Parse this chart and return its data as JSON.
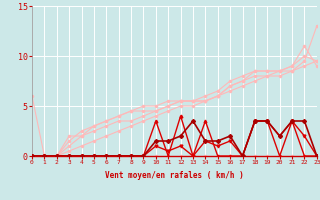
{
  "xlabel": "Vent moyen/en rafales ( km/h )",
  "xlim": [
    0,
    23
  ],
  "ylim": [
    0,
    15
  ],
  "yticks": [
    0,
    5,
    10,
    15
  ],
  "xticks": [
    0,
    1,
    2,
    3,
    4,
    5,
    6,
    7,
    8,
    9,
    10,
    11,
    12,
    13,
    14,
    15,
    16,
    17,
    18,
    19,
    20,
    21,
    22,
    23
  ],
  "bg_color": "#cce8e8",
  "grid_color": "#ffffff",
  "lines": [
    {
      "x": [
        0,
        1,
        2,
        3,
        4,
        5,
        6,
        7,
        8,
        9,
        10,
        11,
        12,
        13,
        14,
        15,
        16,
        17,
        18,
        19,
        20,
        21,
        22,
        23
      ],
      "y": [
        0,
        0,
        0,
        0,
        0,
        0,
        0,
        0,
        0,
        0,
        0,
        0,
        0,
        0,
        0,
        0,
        0,
        0,
        0,
        0,
        0,
        0,
        0,
        0
      ],
      "color": "#ffb8b8",
      "lw": 0.8,
      "marker": "o",
      "ms": 1.5,
      "zorder": 2
    },
    {
      "x": [
        0,
        1,
        2,
        3,
        4,
        5,
        6,
        7,
        8,
        9,
        10,
        11,
        12,
        13,
        14,
        15,
        16,
        17,
        18,
        19,
        20,
        21,
        22,
        23
      ],
      "y": [
        0,
        0,
        0,
        0.5,
        1,
        1.5,
        2,
        2.5,
        3,
        3.5,
        4,
        4.5,
        5,
        5.0,
        5.5,
        6,
        6.5,
        7,
        7.5,
        8,
        8,
        8.5,
        9,
        9.5
      ],
      "color": "#ffb8b8",
      "lw": 0.8,
      "marker": "o",
      "ms": 1.5,
      "zorder": 2
    },
    {
      "x": [
        0,
        1,
        2,
        3,
        4,
        5,
        6,
        7,
        8,
        9,
        10,
        11,
        12,
        13,
        14,
        15,
        16,
        17,
        18,
        19,
        20,
        21,
        22,
        23
      ],
      "y": [
        0,
        0,
        0,
        1,
        2,
        2.5,
        3,
        3.5,
        3.5,
        4,
        4.5,
        5,
        5.5,
        5.5,
        5.5,
        6,
        7,
        7.5,
        8,
        8,
        8.5,
        8.5,
        9.5,
        13
      ],
      "color": "#ffb8b8",
      "lw": 0.8,
      "marker": "o",
      "ms": 1.5,
      "zorder": 2
    },
    {
      "x": [
        0,
        1,
        2,
        3,
        4,
        5,
        6,
        7,
        8,
        9,
        10,
        11,
        12,
        13,
        14,
        15,
        16,
        17,
        18,
        19,
        20,
        21,
        22,
        23
      ],
      "y": [
        0,
        0,
        0,
        1.5,
        2.5,
        3,
        3.5,
        4,
        4.5,
        5,
        5,
        5.5,
        5.5,
        5.5,
        6,
        6.5,
        7.5,
        8,
        8.5,
        8.5,
        8.5,
        9,
        10,
        9.5
      ],
      "color": "#ffb8b8",
      "lw": 0.8,
      "marker": "o",
      "ms": 1.5,
      "zorder": 2
    },
    {
      "x": [
        0,
        1,
        2,
        3,
        4,
        5,
        6,
        7,
        8,
        9,
        10,
        11,
        12,
        13,
        14,
        15,
        16,
        17,
        18,
        19,
        20,
        21,
        22,
        23
      ],
      "y": [
        6,
        0,
        0,
        2,
        2,
        3,
        3.5,
        4,
        4.5,
        4.5,
        4.5,
        5,
        5.5,
        5.5,
        5.5,
        6,
        7,
        7.5,
        8.5,
        8.5,
        8.5,
        9,
        11,
        9
      ],
      "color": "#ffb8b8",
      "lw": 0.8,
      "marker": "o",
      "ms": 1.5,
      "zorder": 2
    },
    {
      "x": [
        0,
        1,
        2,
        3,
        4,
        5,
        6,
        7,
        8,
        9,
        10,
        11,
        12,
        13,
        14,
        15,
        16,
        17,
        18,
        19,
        20,
        21,
        22,
        23
      ],
      "y": [
        0,
        0,
        0,
        0,
        0,
        0,
        0,
        0,
        0,
        0,
        3.5,
        0,
        4,
        0,
        3.5,
        0,
        0,
        0,
        3.5,
        3.5,
        0,
        3.5,
        0,
        0
      ],
      "color": "#dd0000",
      "lw": 1.0,
      "marker": "^",
      "ms": 2.0,
      "zorder": 3
    },
    {
      "x": [
        0,
        1,
        2,
        3,
        4,
        5,
        6,
        7,
        8,
        9,
        10,
        11,
        12,
        13,
        14,
        15,
        16,
        17,
        18,
        19,
        20,
        21,
        22,
        23
      ],
      "y": [
        0,
        0,
        0,
        0,
        0,
        0,
        0,
        0,
        0,
        0,
        1,
        0.5,
        1,
        0,
        1.5,
        1,
        1.5,
        0,
        3.5,
        3.5,
        2,
        3.5,
        2,
        0
      ],
      "color": "#dd0000",
      "lw": 1.0,
      "marker": "v",
      "ms": 2.0,
      "zorder": 3
    },
    {
      "x": [
        0,
        1,
        2,
        3,
        4,
        5,
        6,
        7,
        8,
        9,
        10,
        11,
        12,
        13,
        14,
        15,
        16,
        17,
        18,
        19,
        20,
        21,
        22,
        23
      ],
      "y": [
        0,
        0,
        0,
        0,
        0,
        0,
        0,
        0,
        0,
        0,
        1.5,
        1.5,
        2,
        3.5,
        1.5,
        1.5,
        2,
        0,
        3.5,
        3.5,
        2,
        3.5,
        3.5,
        0
      ],
      "color": "#aa0000",
      "lw": 1.2,
      "marker": "D",
      "ms": 2.0,
      "zorder": 4
    }
  ]
}
